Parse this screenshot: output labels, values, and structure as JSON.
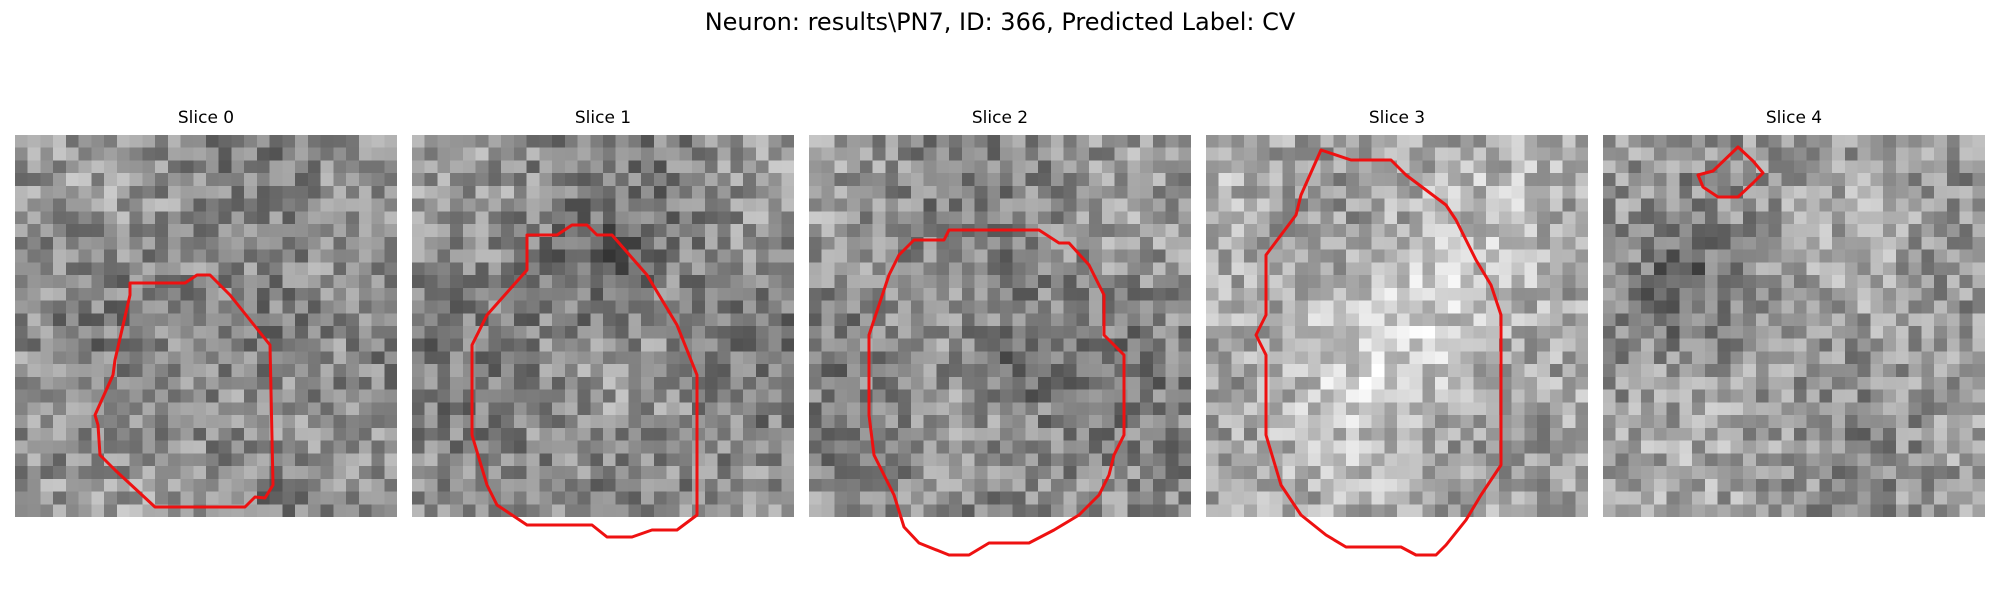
{
  "figure": {
    "title": "Neuron: results\\PN7, ID: 366, Predicted Label: CV"
  },
  "colors": {
    "contour": "#ee1111",
    "colormap": "gray"
  },
  "panels": [
    {
      "title": "Slice 0",
      "mean_intensity": 0.56,
      "dark_patch": true,
      "contour": true
    },
    {
      "title": "Slice 1",
      "mean_intensity": 0.54,
      "dark_patch": true,
      "contour": true
    },
    {
      "title": "Slice 2",
      "mean_intensity": 0.55,
      "dark_patch": true,
      "contour": true
    },
    {
      "title": "Slice 3",
      "mean_intensity": 0.66,
      "bright_patch": true,
      "contour": true
    },
    {
      "title": "Slice 4",
      "mean_intensity": 0.6,
      "dark_patch": true,
      "contour": true
    }
  ]
}
